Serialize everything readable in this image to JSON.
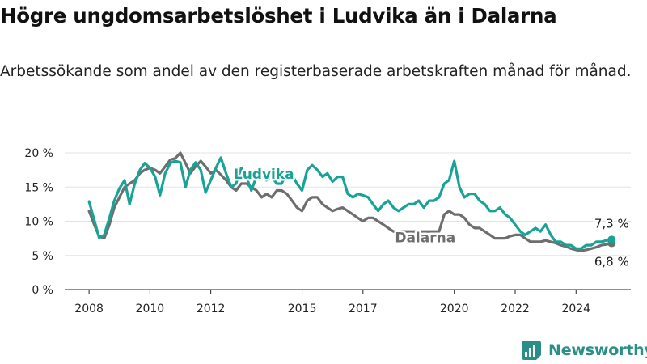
{
  "title": "Högre ungdomsarbetslöshet i Ludvika än i Dalarna",
  "subtitle": "Arbetssökande som andel av den registerbaserade arbetskraften månad för månad.",
  "brand": "Newsworthy",
  "colors": {
    "ludvika": "#18a396",
    "dalarna": "#6e6e6e",
    "grid": "#e3e3e3",
    "axis": "#222222",
    "brand": "#2a8f87"
  },
  "icons": {
    "brand": "bar-chart-logo-icon"
  },
  "chart_data": {
    "type": "line",
    "x_ticks": [
      "2008",
      "2010",
      "2012",
      "2015",
      "2017",
      "2020",
      "2022",
      "2024"
    ],
    "y_ticks": [
      "0 %",
      "5 %",
      "10 %",
      "15 %",
      "20 %"
    ],
    "ylim": [
      0,
      20
    ],
    "xlim": [
      2007.2,
      2025.8
    ],
    "series": [
      {
        "name": "Ludvika",
        "color": "#18a396",
        "end_label": "7,3 %",
        "x": [
          2008.0,
          2008.17,
          2008.33,
          2008.5,
          2008.67,
          2008.83,
          2009.0,
          2009.17,
          2009.33,
          2009.5,
          2009.67,
          2009.83,
          2010.0,
          2010.17,
          2010.33,
          2010.5,
          2010.67,
          2010.83,
          2011.0,
          2011.17,
          2011.33,
          2011.5,
          2011.67,
          2011.83,
          2012.0,
          2012.17,
          2012.33,
          2012.5,
          2012.67,
          2012.83,
          2013.0,
          2013.17,
          2013.33,
          2013.5,
          2013.67,
          2013.83,
          2014.0,
          2014.17,
          2014.33,
          2014.5,
          2014.67,
          2014.83,
          2015.0,
          2015.17,
          2015.33,
          2015.5,
          2015.67,
          2015.83,
          2016.0,
          2016.17,
          2016.33,
          2016.5,
          2016.67,
          2016.83,
          2017.0,
          2017.17,
          2017.33,
          2017.5,
          2017.67,
          2017.83,
          2018.0,
          2018.17,
          2018.33,
          2018.5,
          2018.67,
          2018.83,
          2019.0,
          2019.17,
          2019.33,
          2019.5,
          2019.67,
          2019.83,
          2020.0,
          2020.17,
          2020.33,
          2020.5,
          2020.67,
          2020.83,
          2021.0,
          2021.17,
          2021.33,
          2021.5,
          2021.67,
          2021.83,
          2022.0,
          2022.17,
          2022.33,
          2022.5,
          2022.67,
          2022.83,
          2023.0,
          2023.17,
          2023.33,
          2023.5,
          2023.67,
          2023.83,
          2024.0,
          2024.17,
          2024.33,
          2024.5,
          2024.67,
          2024.83,
          2025.0,
          2025.17
        ],
        "values": [
          12.9,
          10.2,
          7.6,
          8.0,
          10.5,
          13.0,
          14.8,
          16.0,
          12.5,
          15.5,
          17.5,
          18.5,
          17.8,
          16.5,
          13.8,
          17.0,
          18.5,
          18.8,
          18.6,
          15.0,
          17.5,
          18.6,
          17.5,
          14.2,
          16.0,
          17.8,
          19.3,
          17.0,
          15.0,
          15.5,
          17.8,
          16.5,
          14.5,
          16.5,
          17.0,
          16.0,
          16.5,
          15.5,
          15.5,
          17.2,
          16.8,
          15.5,
          14.5,
          17.5,
          18.2,
          17.5,
          16.5,
          17.0,
          15.8,
          16.5,
          16.5,
          14.0,
          13.5,
          14.0,
          13.8,
          13.5,
          12.5,
          11.5,
          12.5,
          13.0,
          12.0,
          11.5,
          12.0,
          12.5,
          12.5,
          13.0,
          12.0,
          13.0,
          13.0,
          13.5,
          15.5,
          16.0,
          18.8,
          15.0,
          13.5,
          14.0,
          14.0,
          13.0,
          12.5,
          11.5,
          11.5,
          12.0,
          11.0,
          10.5,
          9.5,
          8.5,
          8.0,
          8.5,
          9.0,
          8.5,
          9.5,
          8.0,
          7.0,
          7.0,
          6.5,
          6.5,
          6.0,
          6.0,
          6.5,
          6.5,
          7.0,
          7.0,
          7.2,
          7.3
        ]
      },
      {
        "name": "Dalarna",
        "color": "#6e6e6e",
        "end_label": "6,8 %",
        "x": [
          2008.0,
          2008.17,
          2008.33,
          2008.5,
          2008.67,
          2008.83,
          2009.0,
          2009.17,
          2009.33,
          2009.5,
          2009.67,
          2009.83,
          2010.0,
          2010.17,
          2010.33,
          2010.5,
          2010.67,
          2010.83,
          2011.0,
          2011.17,
          2011.33,
          2011.5,
          2011.67,
          2011.83,
          2012.0,
          2012.17,
          2012.33,
          2012.5,
          2012.67,
          2012.83,
          2013.0,
          2013.17,
          2013.33,
          2013.5,
          2013.67,
          2013.83,
          2014.0,
          2014.17,
          2014.33,
          2014.5,
          2014.67,
          2014.83,
          2015.0,
          2015.17,
          2015.33,
          2015.5,
          2015.67,
          2015.83,
          2016.0,
          2016.17,
          2016.33,
          2016.5,
          2016.67,
          2016.83,
          2017.0,
          2017.17,
          2017.33,
          2017.5,
          2017.67,
          2017.83,
          2018.0,
          2018.17,
          2018.33,
          2018.5,
          2018.67,
          2018.83,
          2019.0,
          2019.17,
          2019.33,
          2019.5,
          2019.67,
          2019.83,
          2020.0,
          2020.17,
          2020.33,
          2020.5,
          2020.67,
          2020.83,
          2021.0,
          2021.17,
          2021.33,
          2021.5,
          2021.67,
          2021.83,
          2022.0,
          2022.17,
          2022.33,
          2022.5,
          2022.67,
          2022.83,
          2023.0,
          2023.17,
          2023.33,
          2023.5,
          2023.67,
          2023.83,
          2024.0,
          2024.17,
          2024.33,
          2024.5,
          2024.67,
          2024.83,
          2025.0,
          2025.17
        ],
        "values": [
          11.5,
          9.5,
          7.8,
          7.5,
          9.5,
          12.0,
          13.5,
          15.0,
          15.5,
          16.0,
          17.0,
          17.5,
          17.8,
          17.5,
          17.0,
          18.0,
          19.0,
          19.2,
          20.0,
          18.5,
          17.0,
          18.0,
          18.8,
          18.0,
          17.0,
          17.5,
          16.8,
          16.0,
          15.0,
          14.5,
          15.5,
          15.5,
          15.0,
          14.5,
          13.5,
          14.0,
          13.5,
          14.5,
          14.5,
          14.0,
          13.0,
          12.0,
          11.5,
          13.0,
          13.5,
          13.5,
          12.5,
          12.0,
          11.5,
          11.8,
          12.0,
          11.5,
          11.0,
          10.5,
          10.0,
          10.5,
          10.5,
          10.0,
          9.5,
          9.0,
          8.5,
          8.5,
          8.5,
          8.5,
          8.5,
          8.5,
          8.5,
          8.5,
          8.5,
          8.5,
          11.0,
          11.5,
          11.0,
          11.0,
          10.5,
          9.5,
          9.0,
          9.0,
          8.5,
          8.0,
          7.5,
          7.5,
          7.5,
          7.8,
          8.0,
          8.0,
          7.5,
          7.0,
          7.0,
          7.0,
          7.2,
          7.0,
          6.8,
          6.5,
          6.3,
          6.0,
          5.8,
          5.7,
          5.8,
          6.0,
          6.2,
          6.5,
          6.6,
          6.8
        ]
      }
    ]
  }
}
